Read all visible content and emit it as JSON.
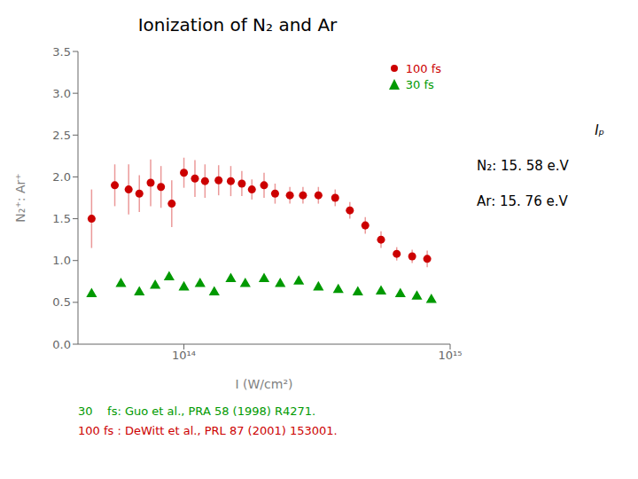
{
  "chart_data": {
    "type": "scatter",
    "title": "Ionization of N₂ and Ar",
    "xlabel": "I (W/cm²)",
    "ylabel": "N₂⁺: Ar⁺",
    "log": "x",
    "grid": false,
    "legend": "upper right",
    "xlim": [
      40000000000000.0,
      1000000000000000.0
    ],
    "xticks": [
      {
        "value": 100000000000000.0,
        "label": "10¹⁴"
      },
      {
        "value": 1000000000000000.0,
        "label": "10¹⁵"
      }
    ],
    "ylim": [
      0.0,
      3.5
    ],
    "yticks": [
      {
        "value": 0.0,
        "label": "0.0"
      },
      0.5,
      {
        "value": 1.0,
        "label": "1.0"
      },
      1.5,
      {
        "value": 2.0,
        "label": "2.0"
      },
      2.5,
      {
        "value": 3.0,
        "label": "3.0"
      },
      3.5
    ],
    "series": [
      {
        "name": "100 fs",
        "color": "#cc0000",
        "marker": "circle",
        "x": [
          45000000000000.0,
          55000000000000.0,
          62000000000000.0,
          68000000000000.0,
          75000000000000.0,
          82000000000000.0,
          90000000000000.0,
          100000000000000.0,
          110000000000000.0,
          120000000000000.0,
          135000000000000.0,
          150000000000000.0,
          165000000000000.0,
          180000000000000.0,
          200000000000000.0,
          220000000000000.0,
          250000000000000.0,
          280000000000000.0,
          320000000000000.0,
          370000000000000.0,
          420000000000000.0,
          480000000000000.0,
          550000000000000.0,
          630000000000000.0,
          720000000000000.0,
          820000000000000.0
        ],
        "values": [
          1.5,
          1.9,
          1.85,
          1.8,
          1.93,
          1.88,
          1.68,
          2.05,
          1.98,
          1.95,
          1.96,
          1.95,
          1.92,
          1.85,
          1.9,
          1.8,
          1.78,
          1.78,
          1.78,
          1.75,
          1.6,
          1.42,
          1.25,
          1.08,
          1.05,
          1.02
        ],
        "yerr": [
          0.35,
          0.25,
          0.3,
          0.22,
          0.28,
          0.25,
          0.28,
          0.18,
          0.22,
          0.2,
          0.18,
          0.18,
          0.15,
          0.12,
          0.15,
          0.12,
          0.1,
          0.1,
          0.1,
          0.1,
          0.1,
          0.1,
          0.1,
          0.08,
          0.08,
          0.1
        ]
      },
      {
        "name": "30 fs",
        "color": "#009900",
        "marker": "triangle",
        "x": [
          45000000000000.0,
          58000000000000.0,
          68000000000000.0,
          78000000000000.0,
          88000000000000.0,
          100000000000000.0,
          115000000000000.0,
          130000000000000.0,
          150000000000000.0,
          170000000000000.0,
          200000000000000.0,
          230000000000000.0,
          270000000000000.0,
          320000000000000.0,
          380000000000000.0,
          450000000000000.0,
          550000000000000.0,
          650000000000000.0,
          750000000000000.0,
          850000000000000.0
        ],
        "values": [
          0.6,
          0.72,
          0.62,
          0.7,
          0.8,
          0.68,
          0.72,
          0.62,
          0.78,
          0.72,
          0.78,
          0.72,
          0.75,
          0.68,
          0.65,
          0.62,
          0.63,
          0.6,
          0.57,
          0.53
        ]
      }
    ],
    "annotations": [
      {
        "text": "Iₚ",
        "color": "#000000"
      },
      {
        "text": "N₂: 15. 58 e.V",
        "color": "#000000"
      },
      {
        "text": "Ar: 15. 76 e.V",
        "color": "#000000"
      },
      {
        "text": "30    fs: Guo et al., PRA 58 (1998) R4271.",
        "color": "#009900"
      },
      {
        "text": "100 fs : DeWitt et al., PRL 87 (2001) 153001.",
        "color": "#cc0000"
      }
    ]
  }
}
